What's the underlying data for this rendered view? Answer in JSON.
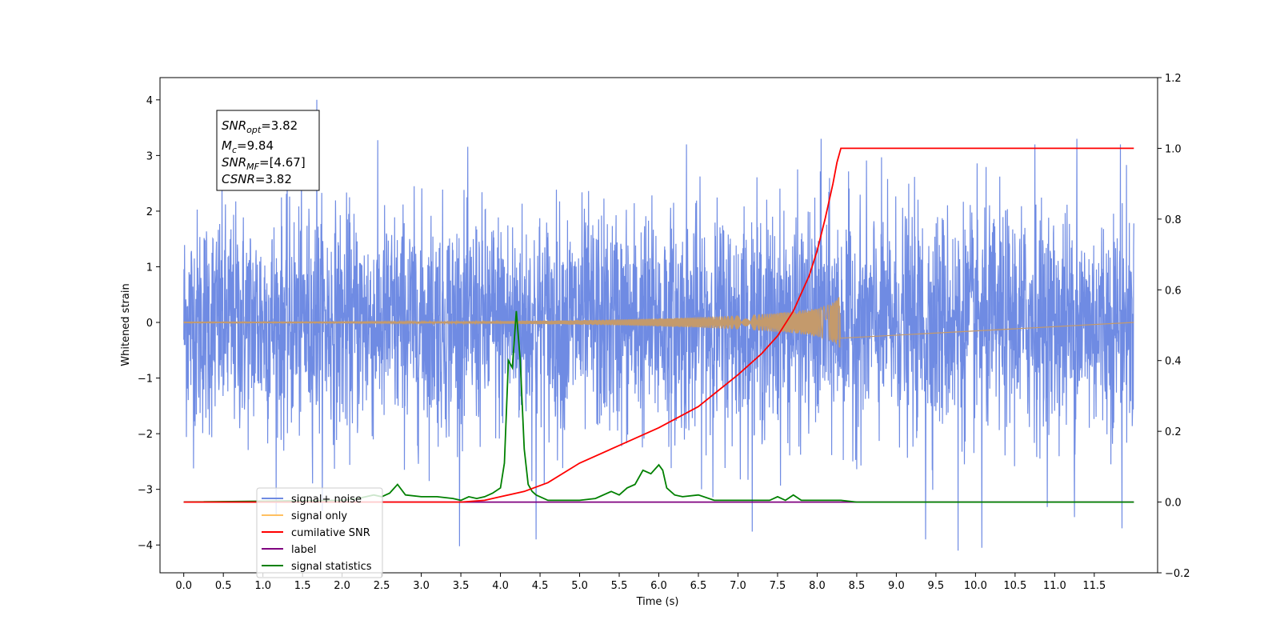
{
  "chart_data": {
    "type": "line",
    "xlabel": "Time (s)",
    "ylabel": "Whitened strain",
    "xlim": [
      -0.3,
      12.3
    ],
    "ylim": [
      -4.5,
      4.4
    ],
    "y2lim": [
      -0.2,
      1.2
    ],
    "x_ticks": [
      "0.0",
      "0.5",
      "1.0",
      "1.5",
      "2.0",
      "2.5",
      "3.0",
      "3.5",
      "4.0",
      "4.5",
      "5.0",
      "5.5",
      "6.0",
      "6.5",
      "7.0",
      "7.5",
      "8.0",
      "8.5",
      "9.0",
      "9.5",
      "10.0",
      "10.5",
      "11.0",
      "11.5"
    ],
    "y_ticks": [
      "−4",
      "−3",
      "−2",
      "−1",
      "0",
      "1",
      "2",
      "3",
      "4"
    ],
    "y2_ticks": [
      "−0.2",
      "0.0",
      "0.2",
      "0.4",
      "0.6",
      "0.8",
      "1.0",
      "1.2"
    ],
    "grid": false,
    "legend_position": "lower-left",
    "annotation": {
      "snr_opt": {
        "base": "SNR",
        "sub": "opt",
        "value": "=3.82"
      },
      "mc": {
        "base": "M",
        "sub": "c",
        "value": "=9.84"
      },
      "snr_mf": {
        "base": "SNR",
        "sub": "MF",
        "value": "=[4.67]"
      },
      "csnr": {
        "base": "CSNR",
        "sub": "",
        "value": "=3.82"
      }
    },
    "series": [
      {
        "name": "signal+ noise",
        "color": "#6f8be3",
        "axis": "left",
        "description_values": {
          "x_range": [
            0.0,
            12.0
          ],
          "approx_std": 1.0,
          "notable_spikes": [
            [
              1.68,
              4.02
            ],
            [
              4.45,
              -3.9
            ],
            [
              9.78,
              -4.1
            ],
            [
              10.08,
              -4.05
            ],
            [
              9.37,
              -3.9
            ],
            [
              11.25,
              -3.5
            ],
            [
              11.85,
              -3.7
            ],
            [
              11.28,
              3.3
            ],
            [
              11.83,
              3.2
            ],
            [
              10.75,
              3.2
            ],
            [
              8.05,
              3.3
            ],
            [
              6.35,
              3.2
            ]
          ]
        }
      },
      {
        "name": "signal only",
        "color": "#ffc061",
        "axis": "left",
        "chirp": {
          "start": 0.0,
          "merger": 8.3,
          "peak_amplitude": 0.58
        }
      },
      {
        "name": "cumilative SNR",
        "color": "#ff0000",
        "axis": "right",
        "x": [
          0.0,
          3.5,
          3.8,
          4.0,
          4.3,
          4.6,
          5.0,
          5.5,
          6.0,
          6.5,
          7.0,
          7.3,
          7.5,
          7.7,
          7.9,
          8.0,
          8.1,
          8.2,
          8.25,
          8.3,
          8.5,
          11.5,
          12.0
        ],
        "y": [
          0.0,
          0.0,
          0.005,
          0.015,
          0.03,
          0.055,
          0.11,
          0.16,
          0.21,
          0.27,
          0.36,
          0.42,
          0.47,
          0.54,
          0.64,
          0.71,
          0.8,
          0.9,
          0.96,
          1.0,
          1.0,
          1.0,
          1.0
        ]
      },
      {
        "name": "label",
        "color": "#800080",
        "axis": "right",
        "x": [
          0.0,
          12.0
        ],
        "y": [
          0.0,
          0.0
        ]
      },
      {
        "name": "signal statistics",
        "color": "#008000",
        "axis": "right",
        "x": [
          0.0,
          2.0,
          2.2,
          2.4,
          2.5,
          2.6,
          2.7,
          2.8,
          3.0,
          3.2,
          3.4,
          3.5,
          3.6,
          3.7,
          3.8,
          3.9,
          4.0,
          4.05,
          4.1,
          4.15,
          4.2,
          4.25,
          4.3,
          4.35,
          4.4,
          4.45,
          4.5,
          4.6,
          4.7,
          4.8,
          5.0,
          5.2,
          5.4,
          5.5,
          5.6,
          5.7,
          5.8,
          5.9,
          6.0,
          6.05,
          6.1,
          6.2,
          6.3,
          6.5,
          6.7,
          7.0,
          7.4,
          7.5,
          7.6,
          7.7,
          7.8,
          8.0,
          8.3,
          8.5,
          9.0,
          12.0
        ],
        "y": [
          0.0,
          0.005,
          0.01,
          0.02,
          0.015,
          0.025,
          0.05,
          0.02,
          0.015,
          0.015,
          0.01,
          0.005,
          0.015,
          0.01,
          0.015,
          0.025,
          0.04,
          0.11,
          0.4,
          0.38,
          0.54,
          0.4,
          0.15,
          0.05,
          0.03,
          0.02,
          0.015,
          0.005,
          0.005,
          0.005,
          0.005,
          0.01,
          0.03,
          0.02,
          0.04,
          0.05,
          0.09,
          0.08,
          0.105,
          0.09,
          0.04,
          0.02,
          0.015,
          0.02,
          0.005,
          0.005,
          0.005,
          0.015,
          0.005,
          0.02,
          0.005,
          0.005,
          0.005,
          0.0,
          0.0,
          0.0
        ]
      }
    ]
  }
}
